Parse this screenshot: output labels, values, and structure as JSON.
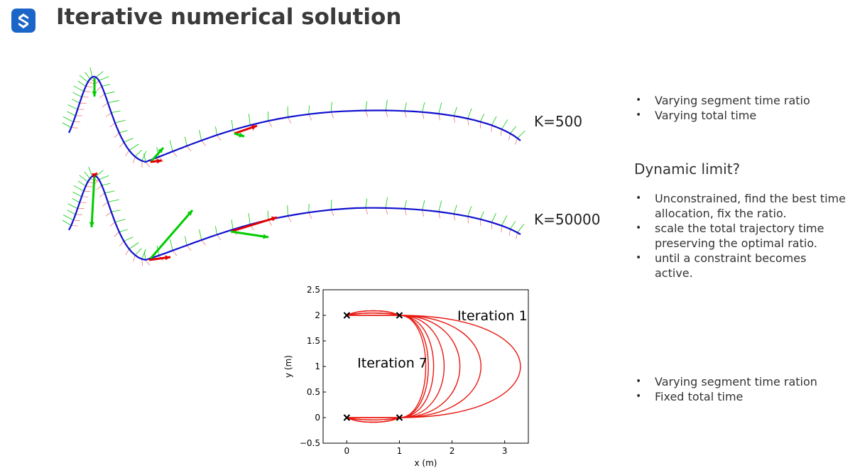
{
  "header": {
    "title": "Iterative numerical solution",
    "logo_icon": "s-logo-icon",
    "logo_color": "#1b64c8"
  },
  "trajectories": {
    "k500_label": "K=500",
    "k50000_label": "K=50000",
    "path_color": "#1010d0",
    "velocity_color": "#00cc00",
    "accel_color": "#e00000"
  },
  "notes": {
    "group1": [
      "Varying segment time ratio",
      "Varying total time"
    ],
    "dynamic_heading": "Dynamic limit?",
    "group2": [
      "Unconstrained, find the best time allocation, fix the ratio.",
      "scale the total trajectory time preserving the optimal ratio.",
      "until a constraint becomes active."
    ],
    "group3": [
      "Varying segment time ration",
      "Fixed total time"
    ]
  },
  "chart_data": {
    "type": "line",
    "title": "",
    "xlabel": "x (m)",
    "ylabel": "y (m)",
    "xlim": [
      -0.45,
      3.45
    ],
    "ylim": [
      -0.5,
      2.5
    ],
    "xticks": [
      0,
      1,
      2,
      3
    ],
    "yticks": [
      -0.5,
      0,
      0.5,
      1,
      1.5,
      2,
      2.5
    ],
    "xtick_labels": [
      "0",
      "1",
      "2",
      "3"
    ],
    "ytick_labels": [
      "−0.5",
      "0",
      "0.5",
      "1",
      "1.5",
      "2",
      "2.5"
    ],
    "line_color": "#e8170f",
    "waypoints": [
      [
        0,
        2
      ],
      [
        1,
        2
      ],
      [
        0,
        0
      ],
      [
        1,
        0
      ]
    ],
    "iteration_max_x": [
      3.3,
      2.55,
      2.15,
      1.85,
      1.65,
      1.55,
      1.5
    ],
    "annotations": [
      {
        "text": "Iteration 1",
        "x": 2.1,
        "y": 1.9
      },
      {
        "text": "Iteration 7",
        "x": 0.2,
        "y": 0.98
      }
    ]
  }
}
